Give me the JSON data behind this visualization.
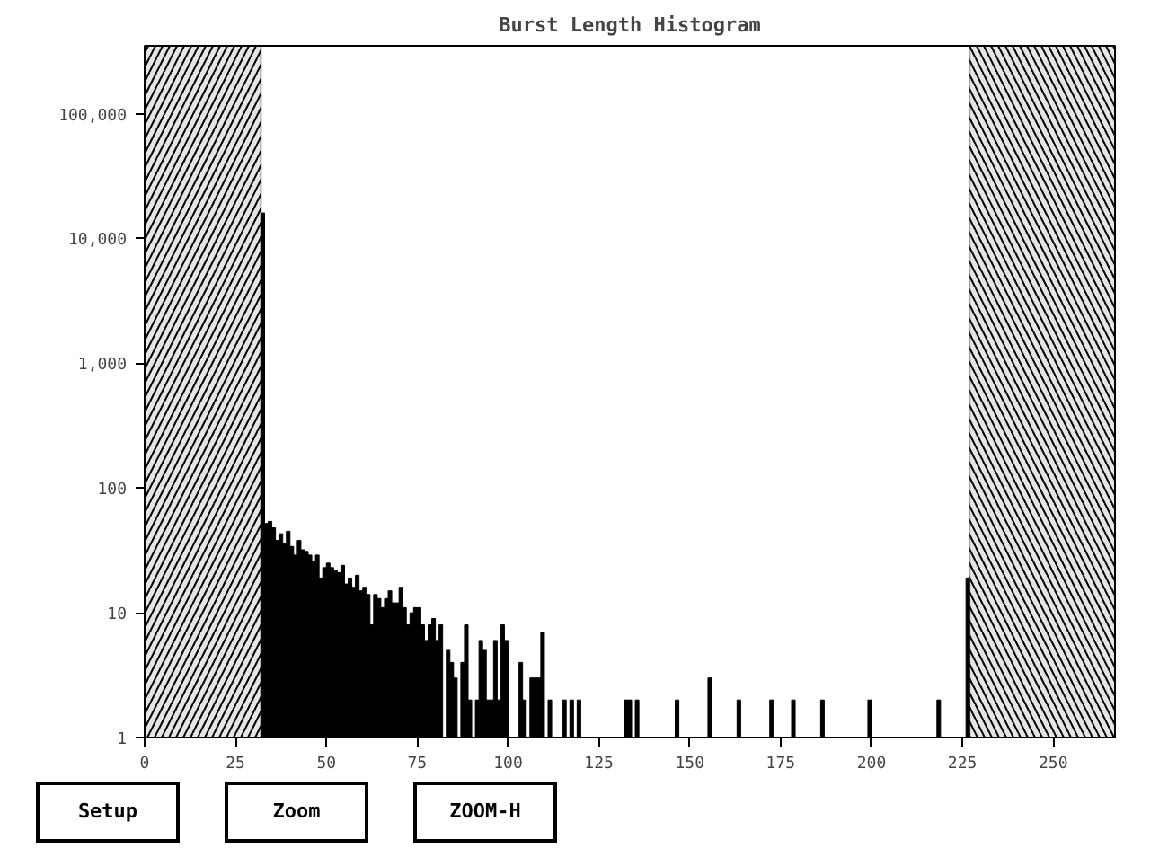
{
  "chart_data": {
    "type": "histogram",
    "title": "Burst Length Histogram",
    "bins": [
      32,
      33,
      34,
      35,
      36,
      37,
      38,
      39,
      40,
      41,
      42,
      43,
      44,
      45,
      46,
      47,
      48,
      49,
      50,
      51,
      52,
      53,
      54,
      55,
      56,
      57,
      58,
      59,
      60,
      61,
      62,
      63,
      64,
      65,
      66,
      67,
      68,
      69,
      70,
      71,
      72,
      73,
      74,
      75,
      76,
      77,
      78,
      79,
      80,
      81,
      82,
      83,
      84,
      85,
      86,
      87,
      88,
      89,
      90,
      91,
      92,
      93,
      94,
      95,
      96,
      97,
      98,
      99,
      100,
      101,
      102,
      103,
      104,
      105,
      106,
      107,
      108,
      109,
      110,
      111,
      112,
      113,
      114,
      115,
      116,
      117,
      118,
      119,
      120,
      121,
      122,
      123,
      124,
      125,
      126,
      127,
      128,
      129,
      130,
      131,
      132,
      133,
      134,
      135,
      136,
      137,
      138,
      139,
      140,
      141,
      142,
      143,
      144,
      145,
      146,
      147,
      148,
      149,
      150,
      151,
      152,
      153,
      154,
      155,
      156,
      157,
      158,
      159,
      160,
      161,
      162,
      163,
      164,
      165,
      166,
      167,
      168,
      169,
      170,
      171,
      172,
      173,
      174,
      175,
      176,
      177,
      178,
      179,
      180,
      181,
      182,
      183,
      184,
      185,
      186,
      187,
      188,
      189,
      190,
      191,
      192,
      193,
      194,
      195,
      196,
      197,
      198,
      199,
      200,
      201,
      202,
      203,
      204,
      205,
      206,
      207,
      208,
      209,
      210,
      211,
      212,
      213,
      214,
      215,
      216,
      217,
      218,
      219,
      220,
      221,
      222,
      223,
      224,
      225,
      226,
      227
    ],
    "values": [
      16000,
      52,
      54,
      48,
      38,
      43,
      36,
      45,
      34,
      29,
      38,
      32,
      31,
      29,
      26,
      29,
      19,
      23,
      25,
      23,
      22,
      21,
      24,
      17,
      19,
      16,
      20,
      15,
      16,
      14,
      8,
      14,
      13,
      11,
      13,
      15,
      12,
      12,
      16,
      11,
      8,
      10,
      11,
      11,
      8,
      6,
      8,
      9,
      6,
      8,
      1,
      5,
      4,
      3,
      1,
      4,
      8,
      2,
      1,
      2,
      6,
      5,
      2,
      2,
      6,
      2,
      8,
      6,
      1,
      1,
      1,
      4,
      2,
      1,
      3,
      3,
      3,
      7,
      1,
      2,
      1,
      1,
      1,
      2,
      1,
      2,
      1,
      2,
      null,
      null,
      null,
      1,
      null,
      null,
      null,
      null,
      null,
      null,
      null,
      null,
      2,
      2,
      null,
      2,
      null,
      null,
      null,
      null,
      null,
      null,
      null,
      null,
      null,
      null,
      2,
      1,
      null,
      1,
      null,
      null,
      null,
      null,
      null,
      3,
      null,
      null,
      null,
      null,
      null,
      null,
      null,
      2,
      1,
      null,
      null,
      null,
      null,
      null,
      null,
      null,
      2,
      null,
      null,
      null,
      null,
      null,
      2,
      null,
      1,
      null,
      null,
      null,
      null,
      null,
      2,
      null,
      null,
      null,
      null,
      null,
      null,
      null,
      null,
      null,
      null,
      null,
      null,
      2,
      null,
      null,
      null,
      null,
      null,
      null,
      null,
      null,
      null,
      null,
      null,
      null,
      null,
      null,
      null,
      null,
      null,
      null,
      2,
      null,
      null,
      null,
      null,
      null,
      null,
      null,
      19
    ],
    "color": "#000000",
    "log": "y",
    "grid": false,
    "xlim": [
      0,
      267
    ],
    "xticks": [
      0,
      25,
      50,
      75,
      100,
      125,
      150,
      175,
      200,
      225,
      250
    ],
    "ylim": [
      1,
      350000
    ],
    "yticks": [
      1,
      10,
      100,
      {
        "value": 1000,
        "label": "1,000"
      },
      {
        "value": 10000,
        "label": "10,000"
      },
      {
        "value": 100000,
        "label": "100,000"
      }
    ],
    "bands": [
      {
        "axis": "x",
        "from": 0,
        "to": 32,
        "label": null,
        "color": "#000000"
      },
      {
        "axis": "x",
        "from": 227,
        "to": 267,
        "label": null,
        "color": "#000000"
      }
    ],
    "annotations": [
      "Setup",
      "Zoom",
      "ZOOM-H"
    ]
  }
}
